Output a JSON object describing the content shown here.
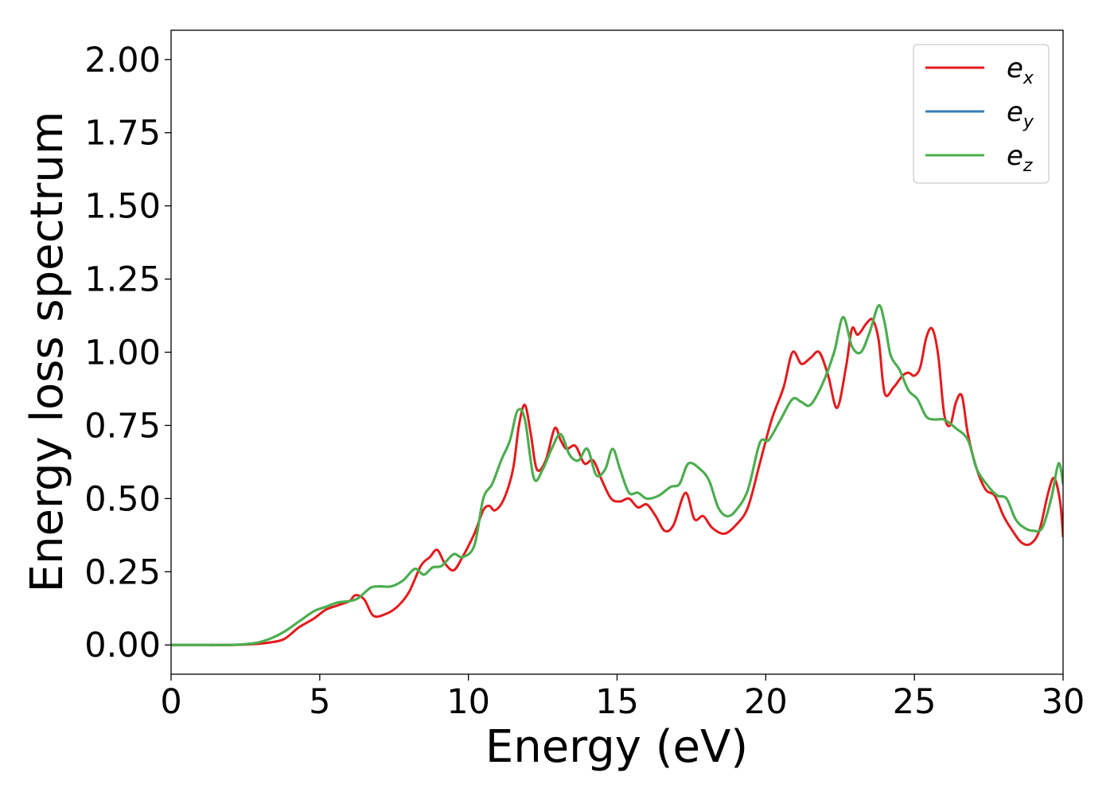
{
  "chart_data": {
    "type": "line",
    "xlabel": "Energy (eV)",
    "ylabel": "Energy loss spectrum",
    "xlim": [
      0,
      30
    ],
    "ylim": [
      -0.1,
      2.1
    ],
    "x_ticks": [
      0,
      5,
      10,
      15,
      20,
      25,
      30
    ],
    "x_tick_labels": [
      "0",
      "5",
      "10",
      "15",
      "20",
      "25",
      "30"
    ],
    "y_ticks": [
      0.0,
      0.25,
      0.5,
      0.75,
      1.0,
      1.25,
      1.5,
      1.75,
      2.0
    ],
    "y_tick_labels": [
      "0.00",
      "0.25",
      "0.50",
      "0.75",
      "1.00",
      "1.25",
      "1.50",
      "1.75",
      "2.00"
    ],
    "grid": false,
    "legend_position": "top-right",
    "series": [
      {
        "name": "e_x",
        "label_base": "e",
        "label_sub": "x",
        "color": "#e41a1c",
        "x": [
          0,
          1,
          2,
          2.8,
          3.3,
          3.8,
          4.3,
          4.8,
          5.2,
          5.6,
          6.0,
          6.2,
          6.5,
          6.8,
          7.2,
          7.6,
          8.0,
          8.4,
          8.7,
          8.95,
          9.2,
          9.5,
          9.8,
          10.2,
          10.5,
          10.7,
          10.9,
          11.2,
          11.5,
          11.7,
          11.9,
          12.1,
          12.3,
          12.6,
          12.9,
          13.1,
          13.3,
          13.6,
          13.9,
          14.2,
          14.5,
          14.8,
          15.1,
          15.4,
          15.7,
          16.0,
          16.3,
          16.6,
          16.9,
          17.3,
          17.6,
          17.9,
          18.2,
          18.6,
          19.0,
          19.4,
          19.8,
          20.2,
          20.6,
          20.9,
          21.2,
          21.5,
          21.8,
          22.1,
          22.4,
          22.7,
          22.9,
          23.1,
          23.4,
          23.6,
          23.8,
          24.0,
          24.3,
          24.6,
          24.8,
          25.0,
          25.2,
          25.4,
          25.6,
          25.8,
          26.0,
          26.2,
          26.4,
          26.6,
          26.8,
          27.1,
          27.4,
          27.7,
          28.0,
          28.3,
          28.6,
          28.9,
          29.2,
          29.5,
          29.7,
          29.9,
          30.0
        ],
        "y": [
          0.0,
          0.0,
          0.0,
          0.003,
          0.008,
          0.02,
          0.06,
          0.09,
          0.12,
          0.135,
          0.15,
          0.17,
          0.155,
          0.1,
          0.105,
          0.13,
          0.18,
          0.27,
          0.3,
          0.325,
          0.28,
          0.255,
          0.3,
          0.38,
          0.46,
          0.475,
          0.46,
          0.5,
          0.6,
          0.75,
          0.82,
          0.72,
          0.6,
          0.63,
          0.74,
          0.7,
          0.67,
          0.68,
          0.62,
          0.63,
          0.56,
          0.5,
          0.49,
          0.5,
          0.47,
          0.48,
          0.44,
          0.39,
          0.41,
          0.52,
          0.43,
          0.44,
          0.4,
          0.38,
          0.41,
          0.47,
          0.62,
          0.77,
          0.88,
          1.0,
          0.96,
          0.98,
          1.0,
          0.92,
          0.81,
          0.95,
          1.08,
          1.06,
          1.1,
          1.11,
          1.04,
          0.86,
          0.88,
          0.92,
          0.93,
          0.92,
          0.95,
          1.05,
          1.08,
          0.99,
          0.79,
          0.75,
          0.83,
          0.85,
          0.72,
          0.6,
          0.53,
          0.51,
          0.44,
          0.39,
          0.35,
          0.345,
          0.39,
          0.52,
          0.57,
          0.49,
          0.37
        ]
      },
      {
        "name": "e_y",
        "label_base": "e",
        "label_sub": "y",
        "color": "#377eb8",
        "x": [
          0,
          1,
          2,
          2.8,
          3.3,
          3.8,
          4.3,
          4.8,
          5.2,
          5.6,
          6.0,
          6.3,
          6.7,
          7.0,
          7.4,
          7.8,
          8.2,
          8.5,
          8.8,
          9.1,
          9.5,
          9.8,
          10.2,
          10.5,
          10.8,
          11.1,
          11.4,
          11.65,
          11.9,
          12.2,
          12.5,
          12.8,
          13.1,
          13.4,
          13.7,
          14.0,
          14.3,
          14.6,
          14.85,
          15.1,
          15.4,
          15.7,
          16.0,
          16.4,
          16.8,
          17.1,
          17.4,
          17.8,
          18.1,
          18.4,
          18.7,
          19.0,
          19.4,
          19.8,
          20.1,
          20.5,
          20.9,
          21.2,
          21.5,
          21.9,
          22.3,
          22.6,
          22.9,
          23.2,
          23.5,
          23.8,
          24.0,
          24.2,
          24.5,
          24.8,
          25.1,
          25.4,
          25.7,
          26.0,
          26.4,
          26.8,
          27.1,
          27.5,
          27.8,
          28.1,
          28.4,
          28.7,
          29.0,
          29.3,
          29.6,
          29.85,
          30.0
        ],
        "y": [
          0.0,
          0.0,
          0.0,
          0.006,
          0.02,
          0.045,
          0.08,
          0.115,
          0.13,
          0.145,
          0.15,
          0.16,
          0.195,
          0.2,
          0.2,
          0.22,
          0.26,
          0.24,
          0.265,
          0.27,
          0.31,
          0.3,
          0.34,
          0.5,
          0.55,
          0.63,
          0.7,
          0.8,
          0.77,
          0.57,
          0.6,
          0.67,
          0.72,
          0.65,
          0.63,
          0.67,
          0.58,
          0.6,
          0.67,
          0.6,
          0.52,
          0.52,
          0.5,
          0.51,
          0.54,
          0.55,
          0.62,
          0.6,
          0.56,
          0.47,
          0.44,
          0.46,
          0.53,
          0.69,
          0.7,
          0.77,
          0.84,
          0.83,
          0.82,
          0.89,
          1.0,
          1.12,
          1.02,
          1.0,
          1.07,
          1.16,
          1.1,
          0.99,
          0.94,
          0.87,
          0.84,
          0.78,
          0.77,
          0.77,
          0.74,
          0.7,
          0.6,
          0.54,
          0.51,
          0.5,
          0.43,
          0.4,
          0.39,
          0.4,
          0.5,
          0.62,
          0.55
        ]
      },
      {
        "name": "e_z",
        "label_base": "e",
        "label_sub": "z",
        "color": "#4daf4a",
        "x": [
          0,
          1,
          2,
          2.8,
          3.3,
          3.8,
          4.3,
          4.8,
          5.2,
          5.6,
          6.0,
          6.3,
          6.7,
          7.0,
          7.4,
          7.8,
          8.2,
          8.5,
          8.8,
          9.1,
          9.5,
          9.8,
          10.2,
          10.5,
          10.8,
          11.1,
          11.4,
          11.65,
          11.9,
          12.2,
          12.5,
          12.8,
          13.1,
          13.4,
          13.7,
          14.0,
          14.3,
          14.6,
          14.85,
          15.1,
          15.4,
          15.7,
          16.0,
          16.4,
          16.8,
          17.1,
          17.4,
          17.8,
          18.1,
          18.4,
          18.7,
          19.0,
          19.4,
          19.8,
          20.1,
          20.5,
          20.9,
          21.2,
          21.5,
          21.9,
          22.3,
          22.6,
          22.9,
          23.2,
          23.5,
          23.8,
          24.0,
          24.2,
          24.5,
          24.8,
          25.1,
          25.4,
          25.7,
          26.0,
          26.4,
          26.8,
          27.1,
          27.5,
          27.8,
          28.1,
          28.4,
          28.7,
          29.0,
          29.3,
          29.6,
          29.85,
          30.0
        ],
        "y": [
          0.0,
          0.0,
          0.0,
          0.006,
          0.02,
          0.045,
          0.08,
          0.115,
          0.13,
          0.145,
          0.15,
          0.16,
          0.195,
          0.2,
          0.2,
          0.22,
          0.26,
          0.24,
          0.265,
          0.27,
          0.31,
          0.3,
          0.34,
          0.5,
          0.55,
          0.63,
          0.7,
          0.8,
          0.77,
          0.57,
          0.6,
          0.67,
          0.72,
          0.65,
          0.63,
          0.67,
          0.58,
          0.6,
          0.67,
          0.6,
          0.52,
          0.52,
          0.5,
          0.51,
          0.54,
          0.55,
          0.62,
          0.6,
          0.56,
          0.47,
          0.44,
          0.46,
          0.53,
          0.69,
          0.7,
          0.77,
          0.84,
          0.83,
          0.82,
          0.89,
          1.0,
          1.12,
          1.02,
          1.0,
          1.07,
          1.16,
          1.1,
          0.99,
          0.94,
          0.87,
          0.84,
          0.78,
          0.77,
          0.77,
          0.74,
          0.7,
          0.6,
          0.54,
          0.51,
          0.5,
          0.43,
          0.4,
          0.39,
          0.4,
          0.5,
          0.62,
          0.55
        ]
      }
    ]
  }
}
